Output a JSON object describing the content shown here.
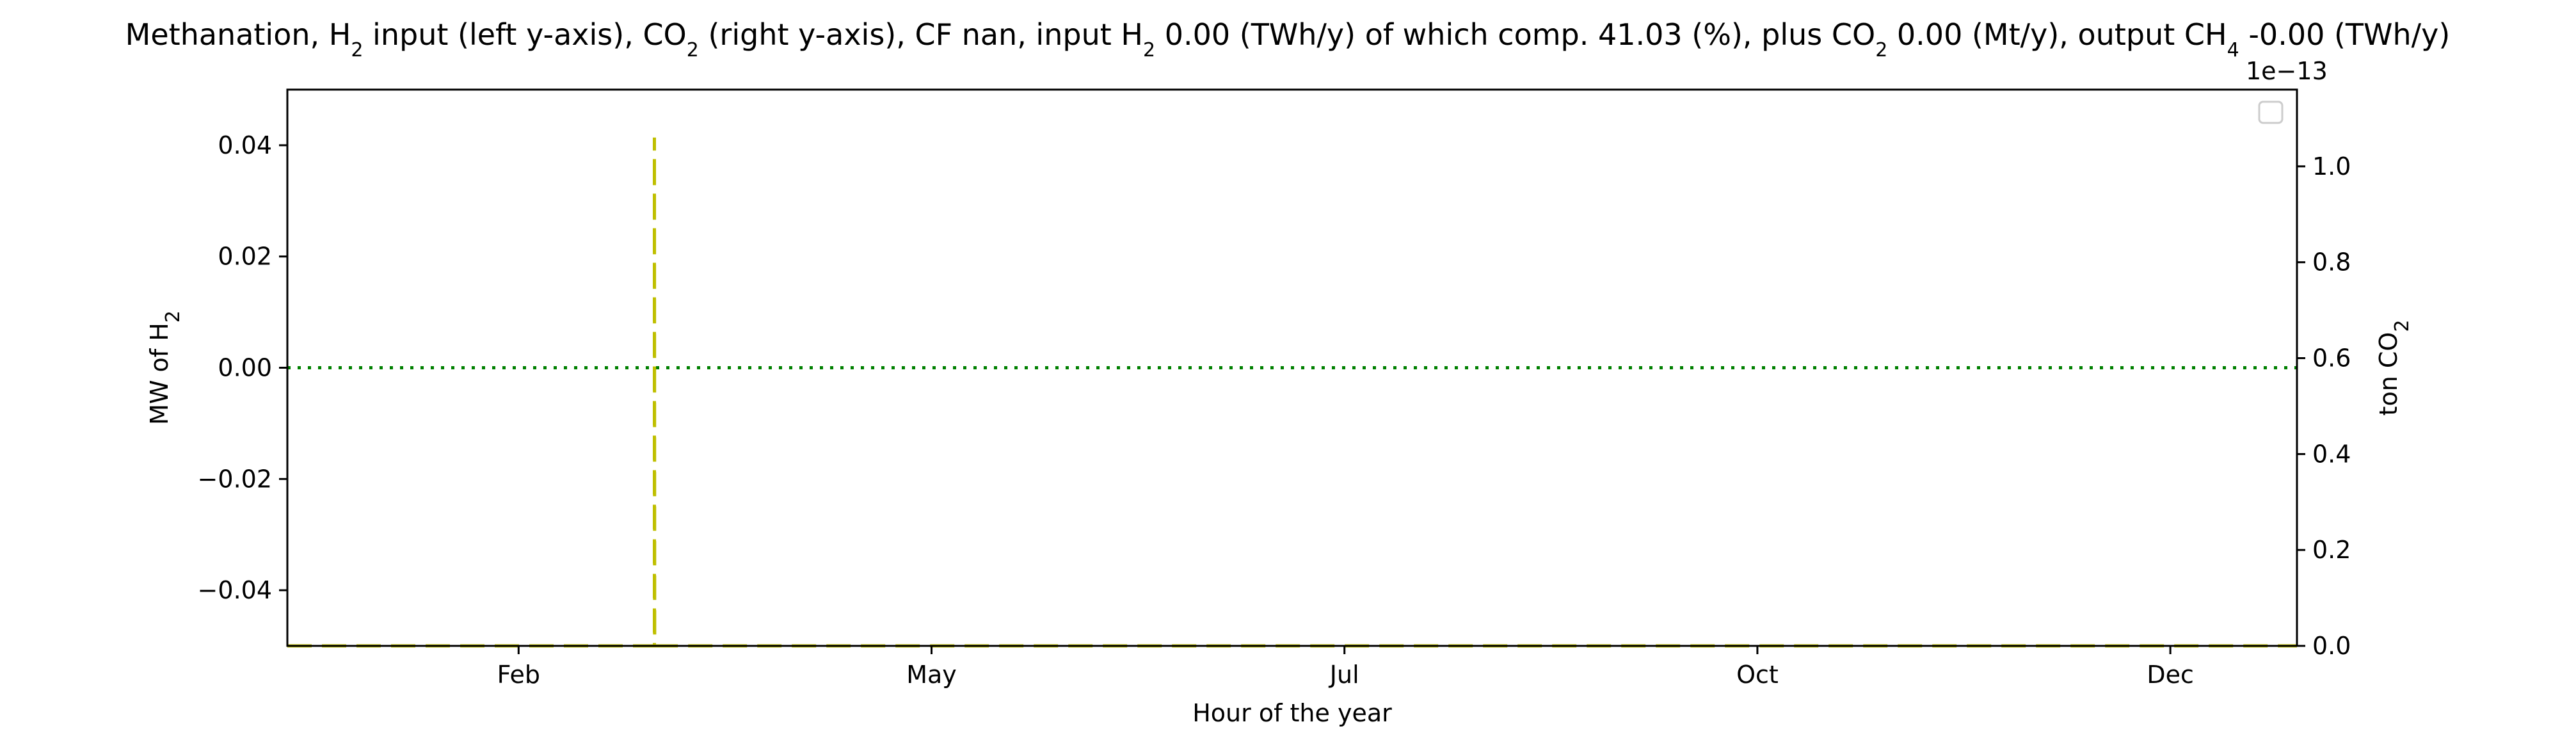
{
  "chart_data": {
    "type": "line",
    "title_parts": [
      {
        "t": "Methanation, H"
      },
      {
        "t": "2",
        "sub": true
      },
      {
        "t": " input (left y-axis), CO"
      },
      {
        "t": "2",
        "sub": true
      },
      {
        "t": " (right y-axis), CF nan, input H"
      },
      {
        "t": "2",
        "sub": true
      },
      {
        "t": " 0.00 (TWh/y) of which comp. 41.03 (%), plus CO"
      },
      {
        "t": "2",
        "sub": true
      },
      {
        "t": " 0.00 (Mt/y), output CH"
      },
      {
        "t": "4",
        "sub": true
      },
      {
        "t": " -0.00 (TWh/y)"
      }
    ],
    "xlabel": "Hour of the year",
    "ylabel_left_parts": [
      {
        "t": "MW of H"
      },
      {
        "t": "2",
        "sub": true
      }
    ],
    "ylabel_right_parts": [
      {
        "t": "ton CO"
      },
      {
        "t": "2",
        "sub": true
      }
    ],
    "right_axis_offset": "1e−13",
    "xlim": [
      0,
      8760
    ],
    "x_ticks": [
      {
        "label": "Feb",
        "value": 1008
      },
      {
        "label": "May",
        "value": 2808
      },
      {
        "label": "Jul",
        "value": 4608
      },
      {
        "label": "Oct",
        "value": 6408
      },
      {
        "label": "Dec",
        "value": 8208
      }
    ],
    "ylim_left": [
      -0.05,
      0.05
    ],
    "y_ticks_left": [
      {
        "label": "0.04",
        "value": 0.04
      },
      {
        "label": "0.02",
        "value": 0.02
      },
      {
        "label": "0.00",
        "value": 0.0
      },
      {
        "label": "−0.02",
        "value": -0.02
      },
      {
        "label": "−0.04",
        "value": -0.04
      }
    ],
    "ylim_right": [
      0,
      1.16
    ],
    "y_ticks_right": [
      {
        "label": "1.0",
        "value": 1.0
      },
      {
        "label": "0.8",
        "value": 0.8
      },
      {
        "label": "0.6",
        "value": 0.6
      },
      {
        "label": "0.4",
        "value": 0.4
      },
      {
        "label": "0.2",
        "value": 0.2
      },
      {
        "label": "0.0",
        "value": 0.0
      }
    ],
    "series": [
      {
        "axis": "left",
        "style": "dotted",
        "color": "#008000",
        "x": [
          0,
          8760
        ],
        "y": [
          0.0,
          0.0
        ]
      },
      {
        "axis": "right",
        "style": "dashed",
        "color": "#bfbf00",
        "x": [
          0,
          1600,
          1600,
          1601,
          8760
        ],
        "y": [
          0.0,
          0.0,
          1.06,
          0.0,
          0.0
        ]
      }
    ],
    "legend": {
      "placement": "top-right",
      "entries": []
    },
    "grid": false,
    "colors": {
      "hydrogen_input": "#008000",
      "co2": "#bfbf00",
      "axes": "#000000"
    }
  }
}
